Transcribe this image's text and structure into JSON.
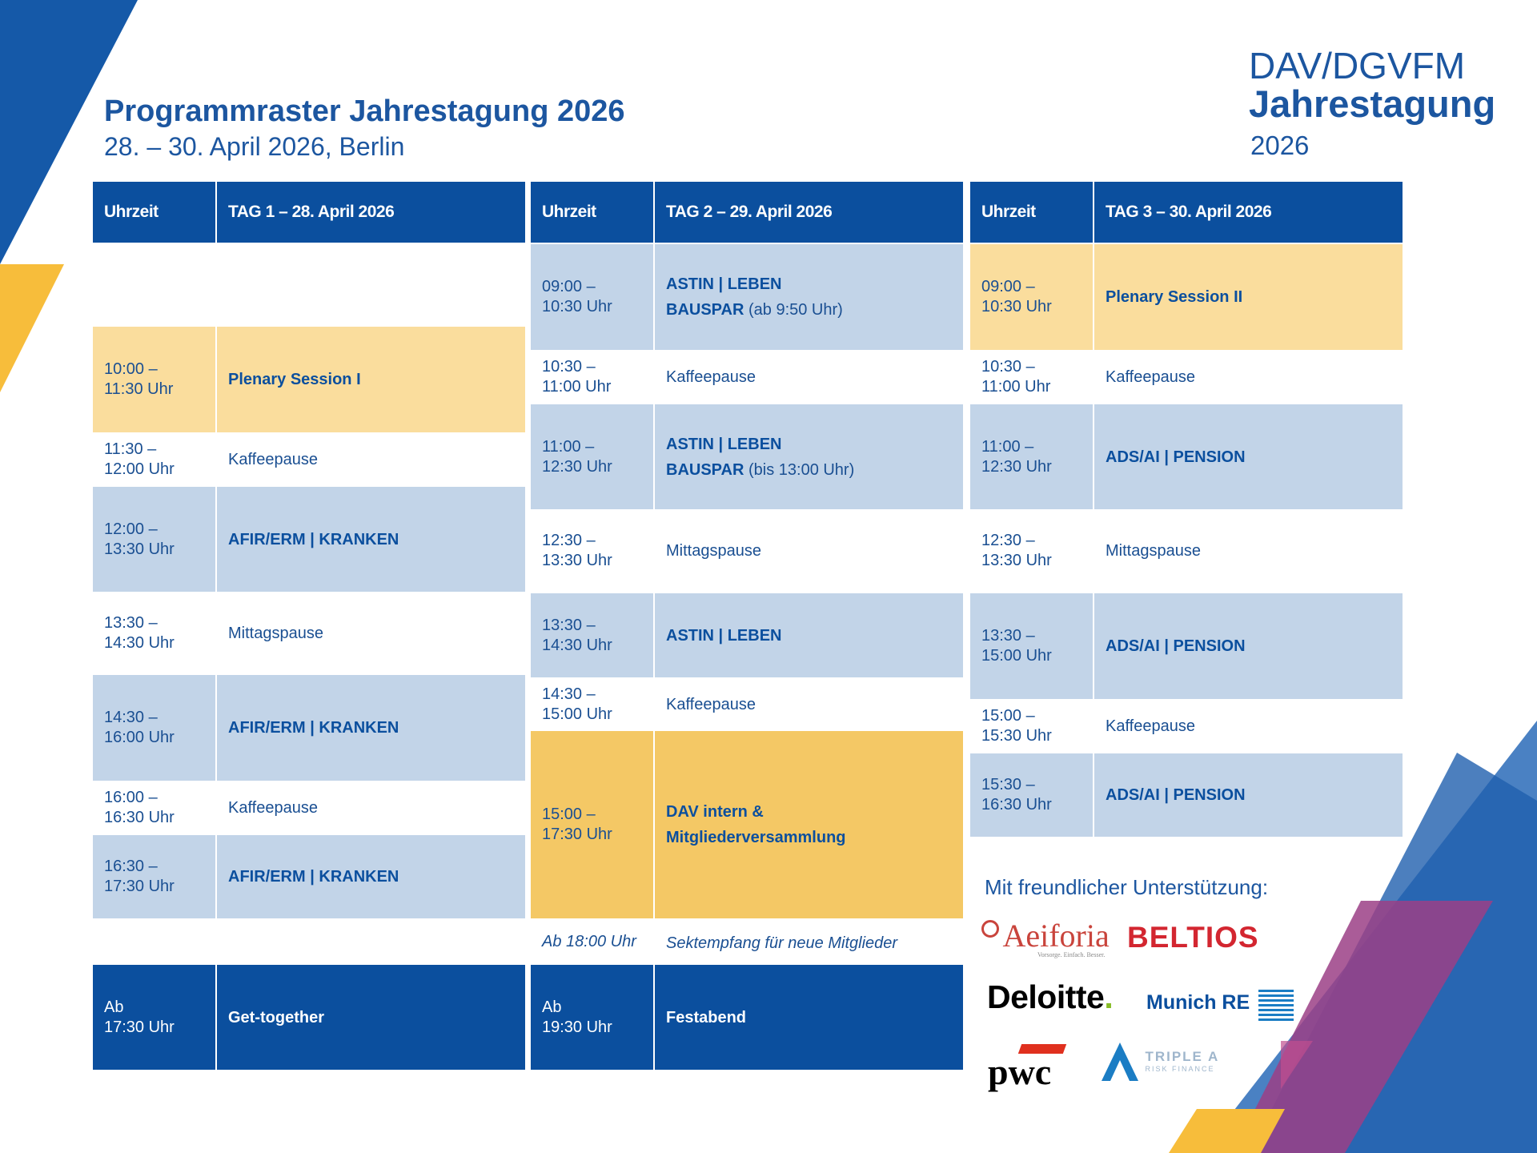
{
  "header": {
    "title": "Programmraster Jahrestagung 2026",
    "subtitle": "28. – 30. April 2026, Berlin"
  },
  "logo": {
    "line1": "DAV/DGVFM",
    "line2": "Jahrestagung",
    "line3": "2026"
  },
  "days": [
    {
      "time_header": "Uhrzeit",
      "day_header": "TAG 1 – 28. April 2026",
      "rows": [
        {
          "time": "10:00 –\n11:30 Uhr",
          "event": "Plenary Session I"
        },
        {
          "time": "11:30 –\n12:00 Uhr",
          "event": "Kaffeepause"
        },
        {
          "time": "12:00 –\n13:30 Uhr",
          "event": "AFIR/ERM | KRANKEN"
        },
        {
          "time": "13:30 –\n14:30 Uhr",
          "event": "Mittagspause"
        },
        {
          "time": "14:30 –\n16:00 Uhr",
          "event": "AFIR/ERM | KRANKEN"
        },
        {
          "time": "16:00 –\n16:30 Uhr",
          "event": "Kaffeepause"
        },
        {
          "time": "16:30 –\n17:30 Uhr",
          "event": "AFIR/ERM | KRANKEN"
        },
        {
          "time": "Ab\n17:30 Uhr",
          "event": "Get-together"
        }
      ]
    },
    {
      "time_header": "Uhrzeit",
      "day_header": "TAG 2 – 29. April 2026",
      "rows": [
        {
          "time": "09:00 –\n10:30 Uhr",
          "event": "ASTIN | LEBEN",
          "event_line2": "BAUSPAR",
          "event_note": " (ab 9:50 Uhr)"
        },
        {
          "time": "10:30 –\n11:00 Uhr",
          "event": "Kaffeepause"
        },
        {
          "time": "11:00 –\n12:30 Uhr",
          "event": "ASTIN | LEBEN",
          "event_line2": "BAUSPAR",
          "event_note": " (bis 13:00 Uhr)"
        },
        {
          "time": "12:30 –\n13:30 Uhr",
          "event": "Mittagspause"
        },
        {
          "time": "13:30 –\n14:30 Uhr",
          "event": "ASTIN | LEBEN"
        },
        {
          "time": "14:30 –\n15:00 Uhr",
          "event": "Kaffeepause"
        },
        {
          "time": "15:00 –\n17:30 Uhr",
          "event": "DAV intern &\nMitgliederversammlung"
        },
        {
          "time": "Ab 18:00 Uhr",
          "event": "Sektempfang für neue Mitglieder"
        },
        {
          "time": "Ab\n19:30 Uhr",
          "event": "Festabend"
        }
      ]
    },
    {
      "time_header": "Uhrzeit",
      "day_header": "TAG 3 – 30. April 2026",
      "rows": [
        {
          "time": "09:00 –\n10:30 Uhr",
          "event": "Plenary Session II"
        },
        {
          "time": "10:30 –\n11:00 Uhr",
          "event": "Kaffeepause"
        },
        {
          "time": "11:00 –\n12:30 Uhr",
          "event": "ADS/AI | PENSION"
        },
        {
          "time": "12:30 –\n13:30 Uhr",
          "event": "Mittagspause"
        },
        {
          "time": "13:30 –\n15:00 Uhr",
          "event": "ADS/AI | PENSION"
        },
        {
          "time": "15:00 –\n15:30 Uhr",
          "event": "Kaffeepause"
        },
        {
          "time": "15:30 –\n16:30 Uhr",
          "event": "ADS/AI | PENSION"
        }
      ]
    }
  ],
  "sponsors": {
    "title": "Mit freundlicher Unterstützung:",
    "aeiforia": "Aeiforia",
    "aeiforia_tagline": "Vorsorge. Einfach. Besser.",
    "beltios": "BELTIOS",
    "deloitte": "Deloitte",
    "deloitte_dot": ".",
    "munich_re": "Munich RE",
    "pwc": "pwc",
    "triple_a_1": "TRIPLE A",
    "triple_a_2": "RISK FINANCE"
  },
  "colors": {
    "navy": "#0b4f9e",
    "light_blue": "#c2d4e8",
    "light_orange": "#fadd9d",
    "orange": "#f4c865",
    "yellow": "#f7bd3b"
  }
}
